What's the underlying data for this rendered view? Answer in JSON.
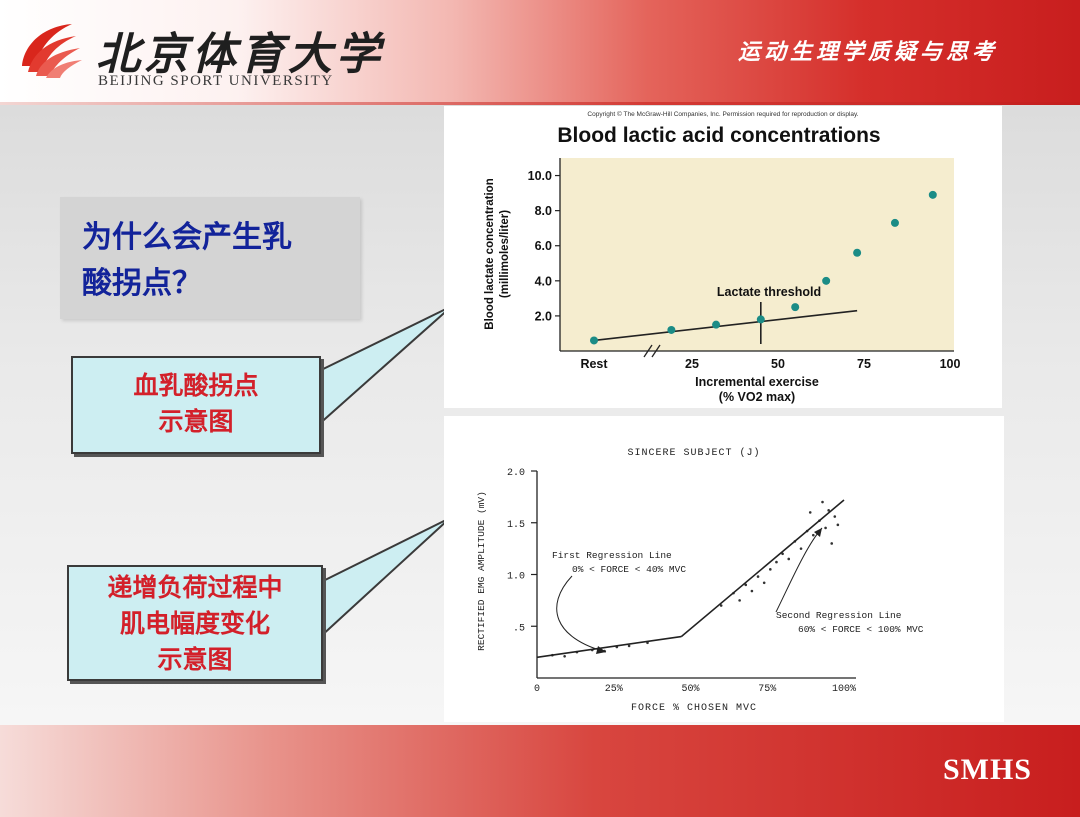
{
  "header": {
    "logo_cn": "北京体育大学",
    "logo_en": "BEIJING SPORT UNIVERSITY",
    "title": "运动生理学质疑与思考"
  },
  "question": {
    "line1": "为什么会产生乳",
    "line2": "酸拐点？"
  },
  "callout1": {
    "line1": "血乳酸拐点",
    "line2": "示意图"
  },
  "callout2": {
    "line1": "递增负荷过程中",
    "line2": "肌电幅度变化",
    "line3": "示意图"
  },
  "footer": {
    "label": "SMHS"
  },
  "colors": {
    "question_text": "#12239a",
    "callout_text": "#d3202a",
    "callout_bg": "#cdeef2",
    "chart1_plot_bg": "#f5edcf",
    "chart1_point": "#1b8c86"
  },
  "chart_data": [
    {
      "type": "scatter",
      "copyright": "Copyright © The McGraw-Hill Companies, Inc. Permission required for reproduction or display.",
      "title": "Blood lactic acid concentrations",
      "ylabel_line1": "Blood lactate concentration",
      "ylabel_line2": "(millimoles/liter)",
      "xlabel_line1": "Incremental exercise",
      "xlabel_line2": "(% VO2 max)",
      "annotation": "Lactate threshold",
      "x_ticks": [
        "Rest",
        "25",
        "50",
        "75",
        "100"
      ],
      "y_ticks": [
        "2.0",
        "4.0",
        "6.0",
        "8.0",
        "10.0"
      ],
      "xlim": [
        10,
        100
      ],
      "ylim": [
        0,
        11
      ],
      "points": [
        {
          "x": "Rest",
          "y": 0.6
        },
        {
          "x": 19,
          "y": 1.2
        },
        {
          "x": 32,
          "y": 1.5
        },
        {
          "x": 45,
          "y": 1.8
        },
        {
          "x": 55,
          "y": 2.5
        },
        {
          "x": 64,
          "y": 4.0
        },
        {
          "x": 73,
          "y": 5.6
        },
        {
          "x": 84,
          "y": 7.3
        },
        {
          "x": 95,
          "y": 8.9
        }
      ],
      "trend_line": [
        {
          "x": "Rest",
          "y": 0.6
        },
        {
          "x": 73,
          "y": 2.3
        }
      ],
      "threshold_x": 45,
      "grid": false
    },
    {
      "type": "scatter",
      "title": "SINCERE SUBJECT (J)",
      "ylabel": "RECTIFIED EMG AMPLITUDE (mV)",
      "xlabel": "FORCE % CHOSEN MVC",
      "x_ticks": [
        "0",
        "25%",
        "50%",
        "75%",
        "100%"
      ],
      "y_ticks": [
        ".5",
        "1.0",
        "1.5",
        "2.0"
      ],
      "xlim": [
        0,
        100
      ],
      "ylim": [
        0,
        2.0
      ],
      "first_regression": {
        "label": "First Regression Line",
        "range": "0% < FORCE < 40% MVC",
        "points": [
          {
            "x": 0,
            "y": 0.2
          },
          {
            "x": 47,
            "y": 0.4
          }
        ]
      },
      "second_regression": {
        "label": "Second Regression Line",
        "range": "60% < FORCE < 100% MVC",
        "points": [
          {
            "x": 47,
            "y": 0.4
          },
          {
            "x": 100,
            "y": 1.72
          }
        ]
      },
      "scatter_points": [
        {
          "x": 5,
          "y": 0.22
        },
        {
          "x": 9,
          "y": 0.21
        },
        {
          "x": 13,
          "y": 0.25
        },
        {
          "x": 18,
          "y": 0.27
        },
        {
          "x": 22,
          "y": 0.26
        },
        {
          "x": 26,
          "y": 0.3
        },
        {
          "x": 30,
          "y": 0.31
        },
        {
          "x": 36,
          "y": 0.34
        },
        {
          "x": 60,
          "y": 0.7
        },
        {
          "x": 64,
          "y": 0.82
        },
        {
          "x": 66,
          "y": 0.75
        },
        {
          "x": 68,
          "y": 0.9
        },
        {
          "x": 70,
          "y": 0.84
        },
        {
          "x": 72,
          "y": 0.98
        },
        {
          "x": 74,
          "y": 0.92
        },
        {
          "x": 76,
          "y": 1.05
        },
        {
          "x": 78,
          "y": 1.12
        },
        {
          "x": 80,
          "y": 1.2
        },
        {
          "x": 82,
          "y": 1.15
        },
        {
          "x": 84,
          "y": 1.32
        },
        {
          "x": 86,
          "y": 1.25
        },
        {
          "x": 88,
          "y": 1.42
        },
        {
          "x": 89,
          "y": 1.6
        },
        {
          "x": 90,
          "y": 1.38
        },
        {
          "x": 92,
          "y": 1.52
        },
        {
          "x": 93,
          "y": 1.7
        },
        {
          "x": 94,
          "y": 1.45
        },
        {
          "x": 95,
          "y": 1.62
        },
        {
          "x": 96,
          "y": 1.3
        },
        {
          "x": 97,
          "y": 1.56
        },
        {
          "x": 98,
          "y": 1.48
        }
      ],
      "grid": false
    }
  ]
}
